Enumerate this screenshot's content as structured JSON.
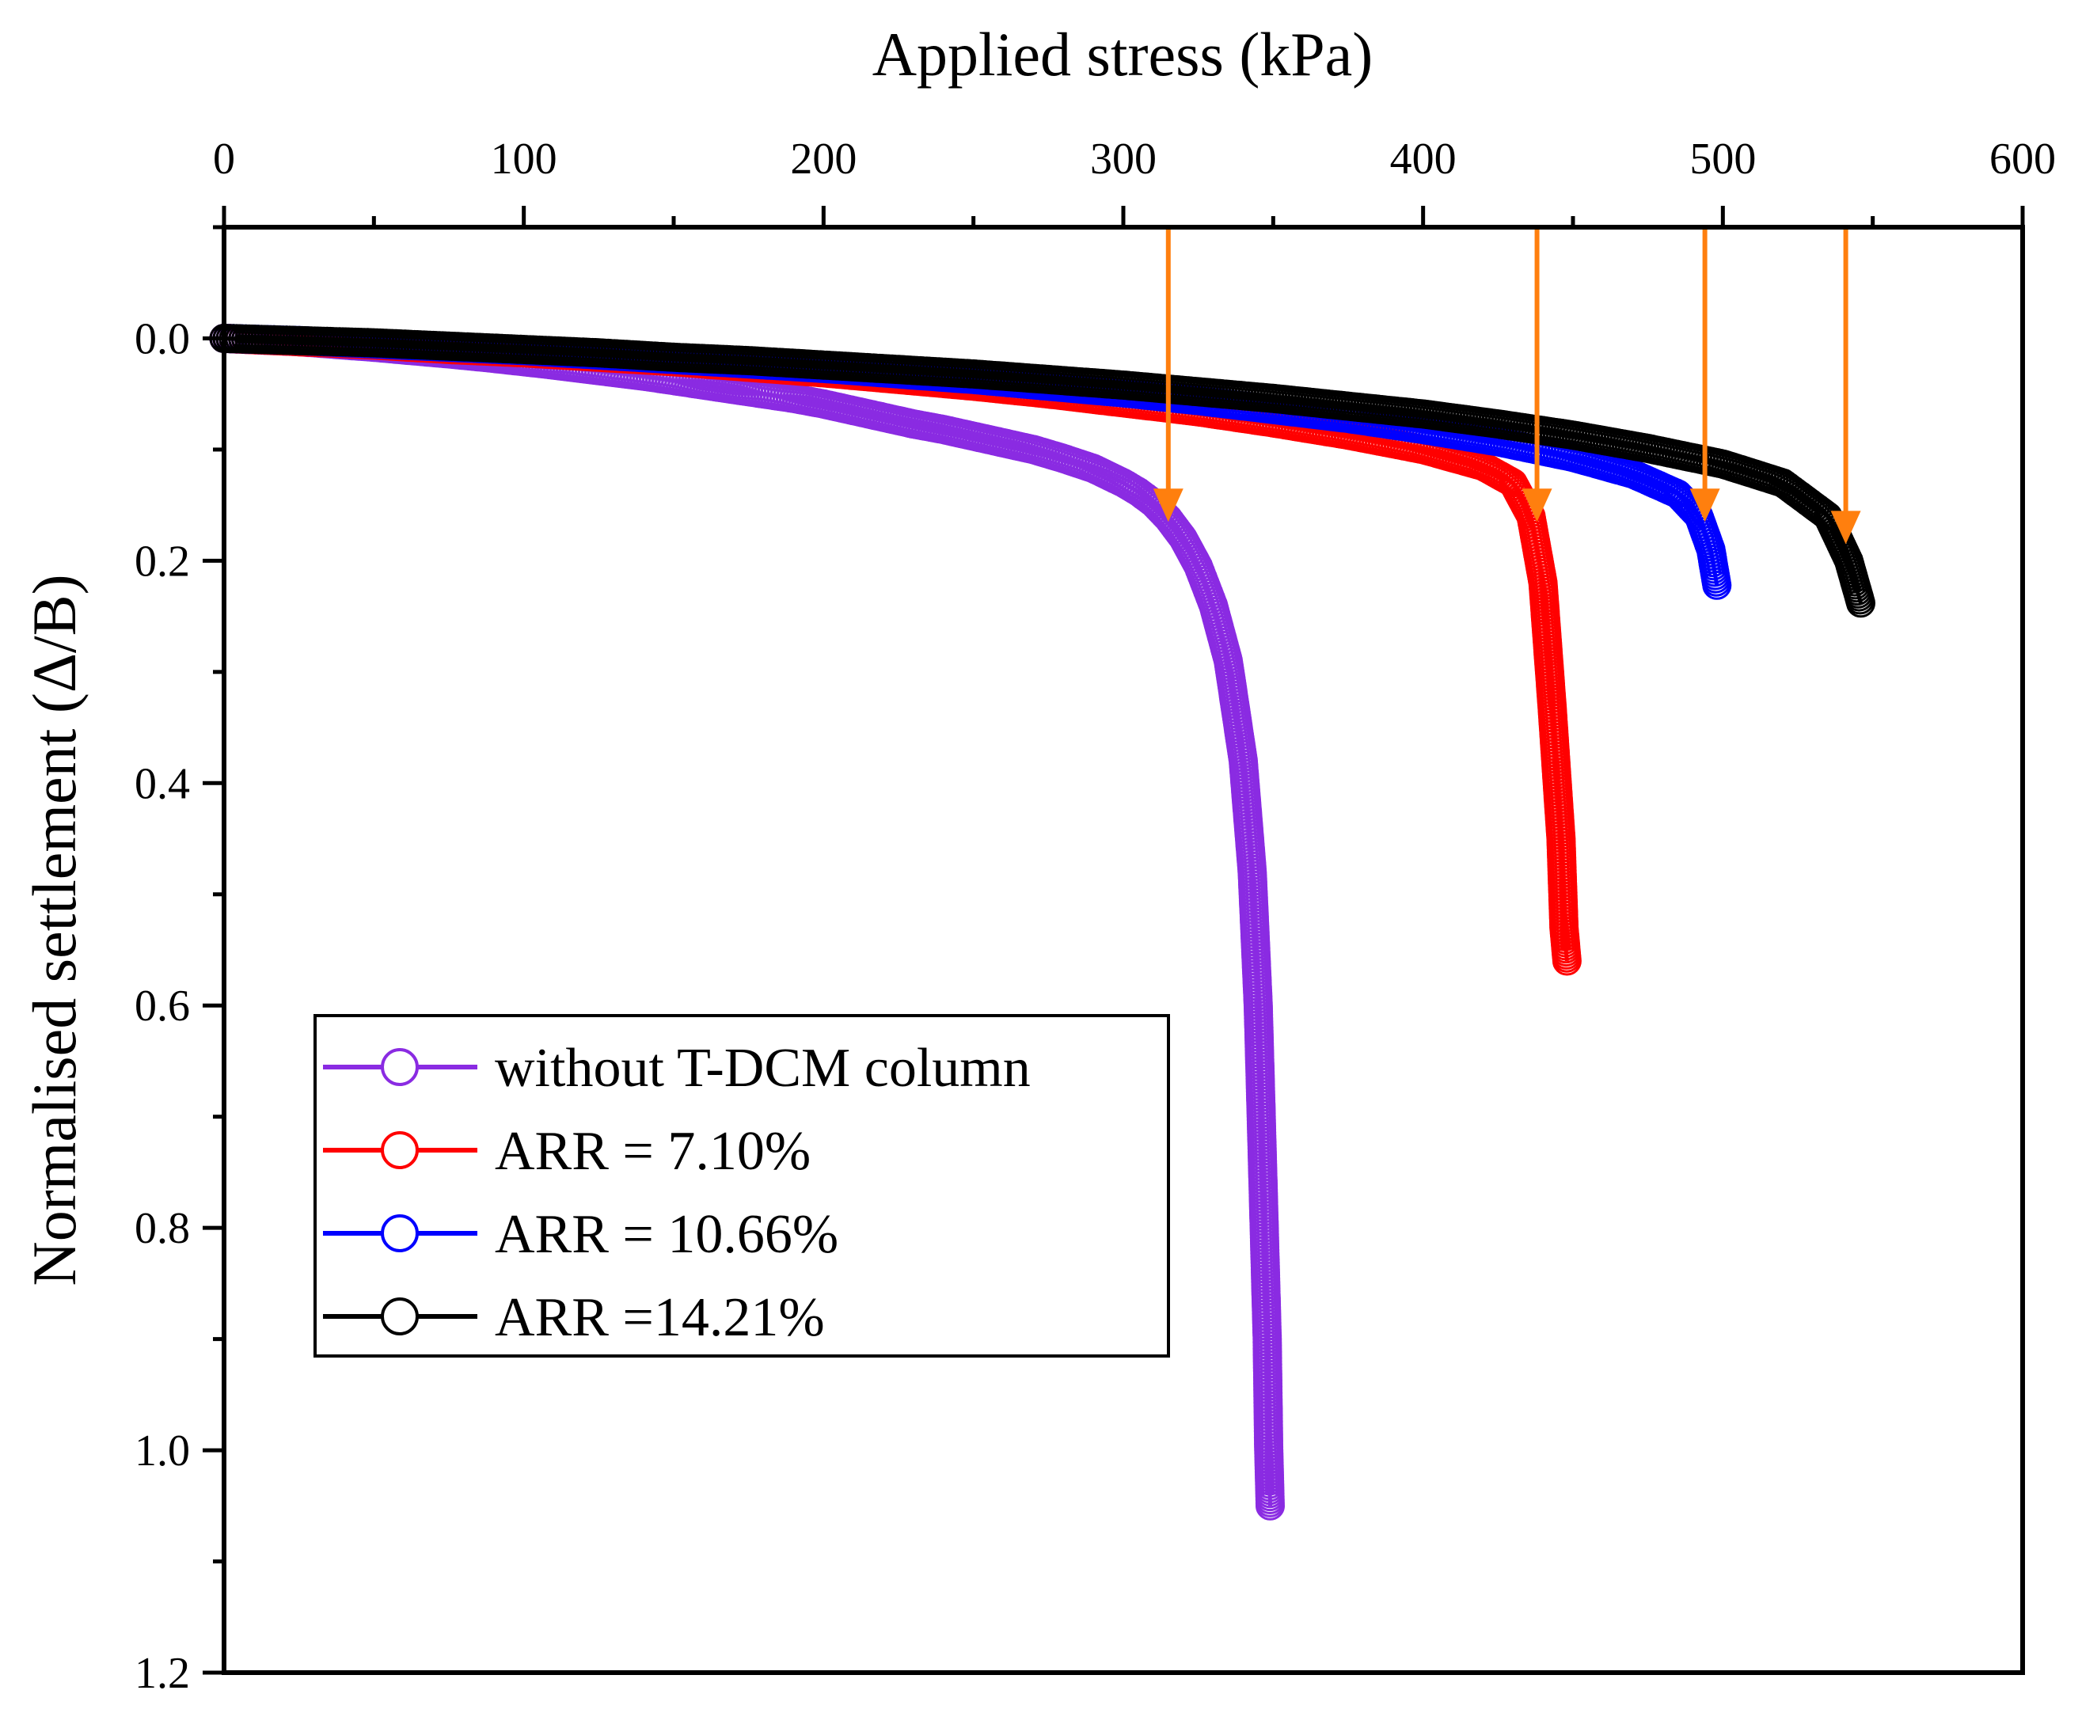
{
  "chart_data": {
    "type": "scatter",
    "title": "",
    "xlabel": "Applied stress (kPa)",
    "ylabel": "Normalised settlement (Δ/B)",
    "x_axis_position": "top",
    "y_axis_inverted": true,
    "xlim": [
      0,
      600
    ],
    "ylim": [
      -0.1,
      1.2
    ],
    "x_ticks": [
      0,
      100,
      200,
      300,
      400,
      500,
      600
    ],
    "x_tick_labels": [
      "0",
      "100",
      "200",
      "300",
      "400",
      "500",
      "600"
    ],
    "y_ticks": [
      0.0,
      0.2,
      0.4,
      0.6,
      0.8,
      1.0,
      1.2
    ],
    "y_tick_labels": [
      "0.0",
      "0.2",
      "0.4",
      "0.6",
      "0.8",
      "1.0",
      "1.2"
    ],
    "grid": false,
    "legend_position": "bottom-left",
    "series": [
      {
        "name": "without T-DCM column",
        "color": "#8a2be2",
        "marker": "open-circle",
        "points": [
          [
            0,
            0.0
          ],
          [
            25,
            0.003
          ],
          [
            50,
            0.008
          ],
          [
            75,
            0.014
          ],
          [
            90,
            0.018
          ],
          [
            100,
            0.021
          ],
          [
            110,
            0.024
          ],
          [
            125,
            0.029
          ],
          [
            140,
            0.034
          ],
          [
            155,
            0.04
          ],
          [
            165,
            0.044
          ],
          [
            175,
            0.048
          ],
          [
            190,
            0.054
          ],
          [
            200,
            0.059
          ],
          [
            210,
            0.065
          ],
          [
            220,
            0.071
          ],
          [
            230,
            0.077
          ],
          [
            240,
            0.082
          ],
          [
            250,
            0.088
          ],
          [
            260,
            0.094
          ],
          [
            270,
            0.1
          ],
          [
            280,
            0.108
          ],
          [
            290,
            0.117
          ],
          [
            300,
            0.13
          ],
          [
            305,
            0.138
          ],
          [
            310,
            0.148
          ],
          [
            315,
            0.162
          ],
          [
            320,
            0.18
          ],
          [
            325,
            0.205
          ],
          [
            330,
            0.24
          ],
          [
            335,
            0.29
          ],
          [
            340,
            0.38
          ],
          [
            343,
            0.48
          ],
          [
            345,
            0.6
          ],
          [
            346,
            0.7
          ],
          [
            347,
            0.8
          ],
          [
            348,
            0.9
          ],
          [
            348.5,
            1.0
          ],
          [
            349,
            1.05
          ]
        ]
      },
      {
        "name": "ARR = 7.10%",
        "color": "#ff0000",
        "marker": "open-circle",
        "points": [
          [
            0,
            0.0
          ],
          [
            25,
            0.003
          ],
          [
            50,
            0.006
          ],
          [
            75,
            0.01
          ],
          [
            100,
            0.013
          ],
          [
            125,
            0.017
          ],
          [
            150,
            0.021
          ],
          [
            175,
            0.026
          ],
          [
            200,
            0.031
          ],
          [
            225,
            0.037
          ],
          [
            250,
            0.043
          ],
          [
            275,
            0.05
          ],
          [
            300,
            0.058
          ],
          [
            325,
            0.066
          ],
          [
            350,
            0.076
          ],
          [
            375,
            0.087
          ],
          [
            400,
            0.1
          ],
          [
            420,
            0.115
          ],
          [
            430,
            0.13
          ],
          [
            436,
            0.16
          ],
          [
            440,
            0.22
          ],
          [
            443,
            0.33
          ],
          [
            446,
            0.45
          ],
          [
            447,
            0.53
          ],
          [
            448,
            0.56
          ]
        ]
      },
      {
        "name": "ARR = 10.66%",
        "color": "#0000ff",
        "marker": "open-circle",
        "points": [
          [
            0,
            0.0
          ],
          [
            25,
            0.002
          ],
          [
            50,
            0.005
          ],
          [
            75,
            0.008
          ],
          [
            100,
            0.011
          ],
          [
            125,
            0.015
          ],
          [
            150,
            0.019
          ],
          [
            175,
            0.023
          ],
          [
            200,
            0.027
          ],
          [
            225,
            0.032
          ],
          [
            250,
            0.037
          ],
          [
            275,
            0.043
          ],
          [
            300,
            0.049
          ],
          [
            325,
            0.056
          ],
          [
            350,
            0.064
          ],
          [
            375,
            0.072
          ],
          [
            400,
            0.082
          ],
          [
            425,
            0.093
          ],
          [
            450,
            0.107
          ],
          [
            470,
            0.122
          ],
          [
            485,
            0.14
          ],
          [
            492,
            0.16
          ],
          [
            496,
            0.19
          ],
          [
            498,
            0.222
          ]
        ]
      },
      {
        "name": "ARR =14.21%",
        "color": "#000000",
        "marker": "open-circle",
        "points": [
          [
            0,
            0.0
          ],
          [
            25,
            0.002
          ],
          [
            50,
            0.004
          ],
          [
            75,
            0.007
          ],
          [
            100,
            0.01
          ],
          [
            125,
            0.013
          ],
          [
            150,
            0.017
          ],
          [
            175,
            0.02
          ],
          [
            200,
            0.024
          ],
          [
            225,
            0.028
          ],
          [
            250,
            0.032
          ],
          [
            275,
            0.037
          ],
          [
            300,
            0.042
          ],
          [
            325,
            0.048
          ],
          [
            350,
            0.054
          ],
          [
            375,
            0.061
          ],
          [
            400,
            0.068
          ],
          [
            425,
            0.077
          ],
          [
            450,
            0.087
          ],
          [
            475,
            0.099
          ],
          [
            500,
            0.113
          ],
          [
            520,
            0.13
          ],
          [
            535,
            0.16
          ],
          [
            542,
            0.2
          ],
          [
            546,
            0.238
          ]
        ]
      }
    ],
    "annotations": [
      {
        "type": "arrow",
        "color": "#ff7f0e",
        "x": 315,
        "y_from": -0.1,
        "y_to": 0.165
      },
      {
        "type": "arrow",
        "color": "#ff7f0e",
        "x": 438,
        "y_from": -0.1,
        "y_to": 0.165
      },
      {
        "type": "arrow",
        "color": "#ff7f0e",
        "x": 494,
        "y_from": -0.1,
        "y_to": 0.165
      },
      {
        "type": "arrow",
        "color": "#ff7f0e",
        "x": 541,
        "y_from": -0.1,
        "y_to": 0.185
      }
    ]
  }
}
